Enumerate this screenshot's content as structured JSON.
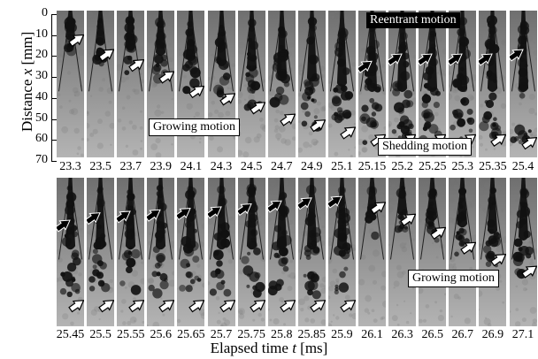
{
  "axis": {
    "y_title_prefix": "Distance ",
    "y_title_var": "x",
    "y_title_suffix": " [mm]",
    "y_ticks": [
      "0",
      "10",
      "20",
      "30",
      "40",
      "50",
      "60",
      "70"
    ],
    "x_title_prefix": "Elapsed time ",
    "x_title_var": "t",
    "x_title_suffix": " [ms]"
  },
  "row1_times": [
    "23.3",
    "23.5",
    "23.7",
    "23.9",
    "24.1",
    "24.3",
    "24.5",
    "24.7",
    "24.9",
    "25.1",
    "25.15",
    "25.2",
    "25.25",
    "25.3",
    "25.35",
    "25.4"
  ],
  "row2_times": [
    "25.45",
    "25.5",
    "25.55",
    "25.6",
    "25.65",
    "25.7",
    "25.75",
    "25.8",
    "25.85",
    "25.9",
    "26.1",
    "26.3",
    "26.5",
    "26.7",
    "26.9",
    "27.1"
  ],
  "annotations": {
    "reentrant": "Reentrant motion",
    "growing_top": "Growing motion",
    "shedding": "Shedding motion",
    "growing_bottom": "Growing motion"
  }
}
